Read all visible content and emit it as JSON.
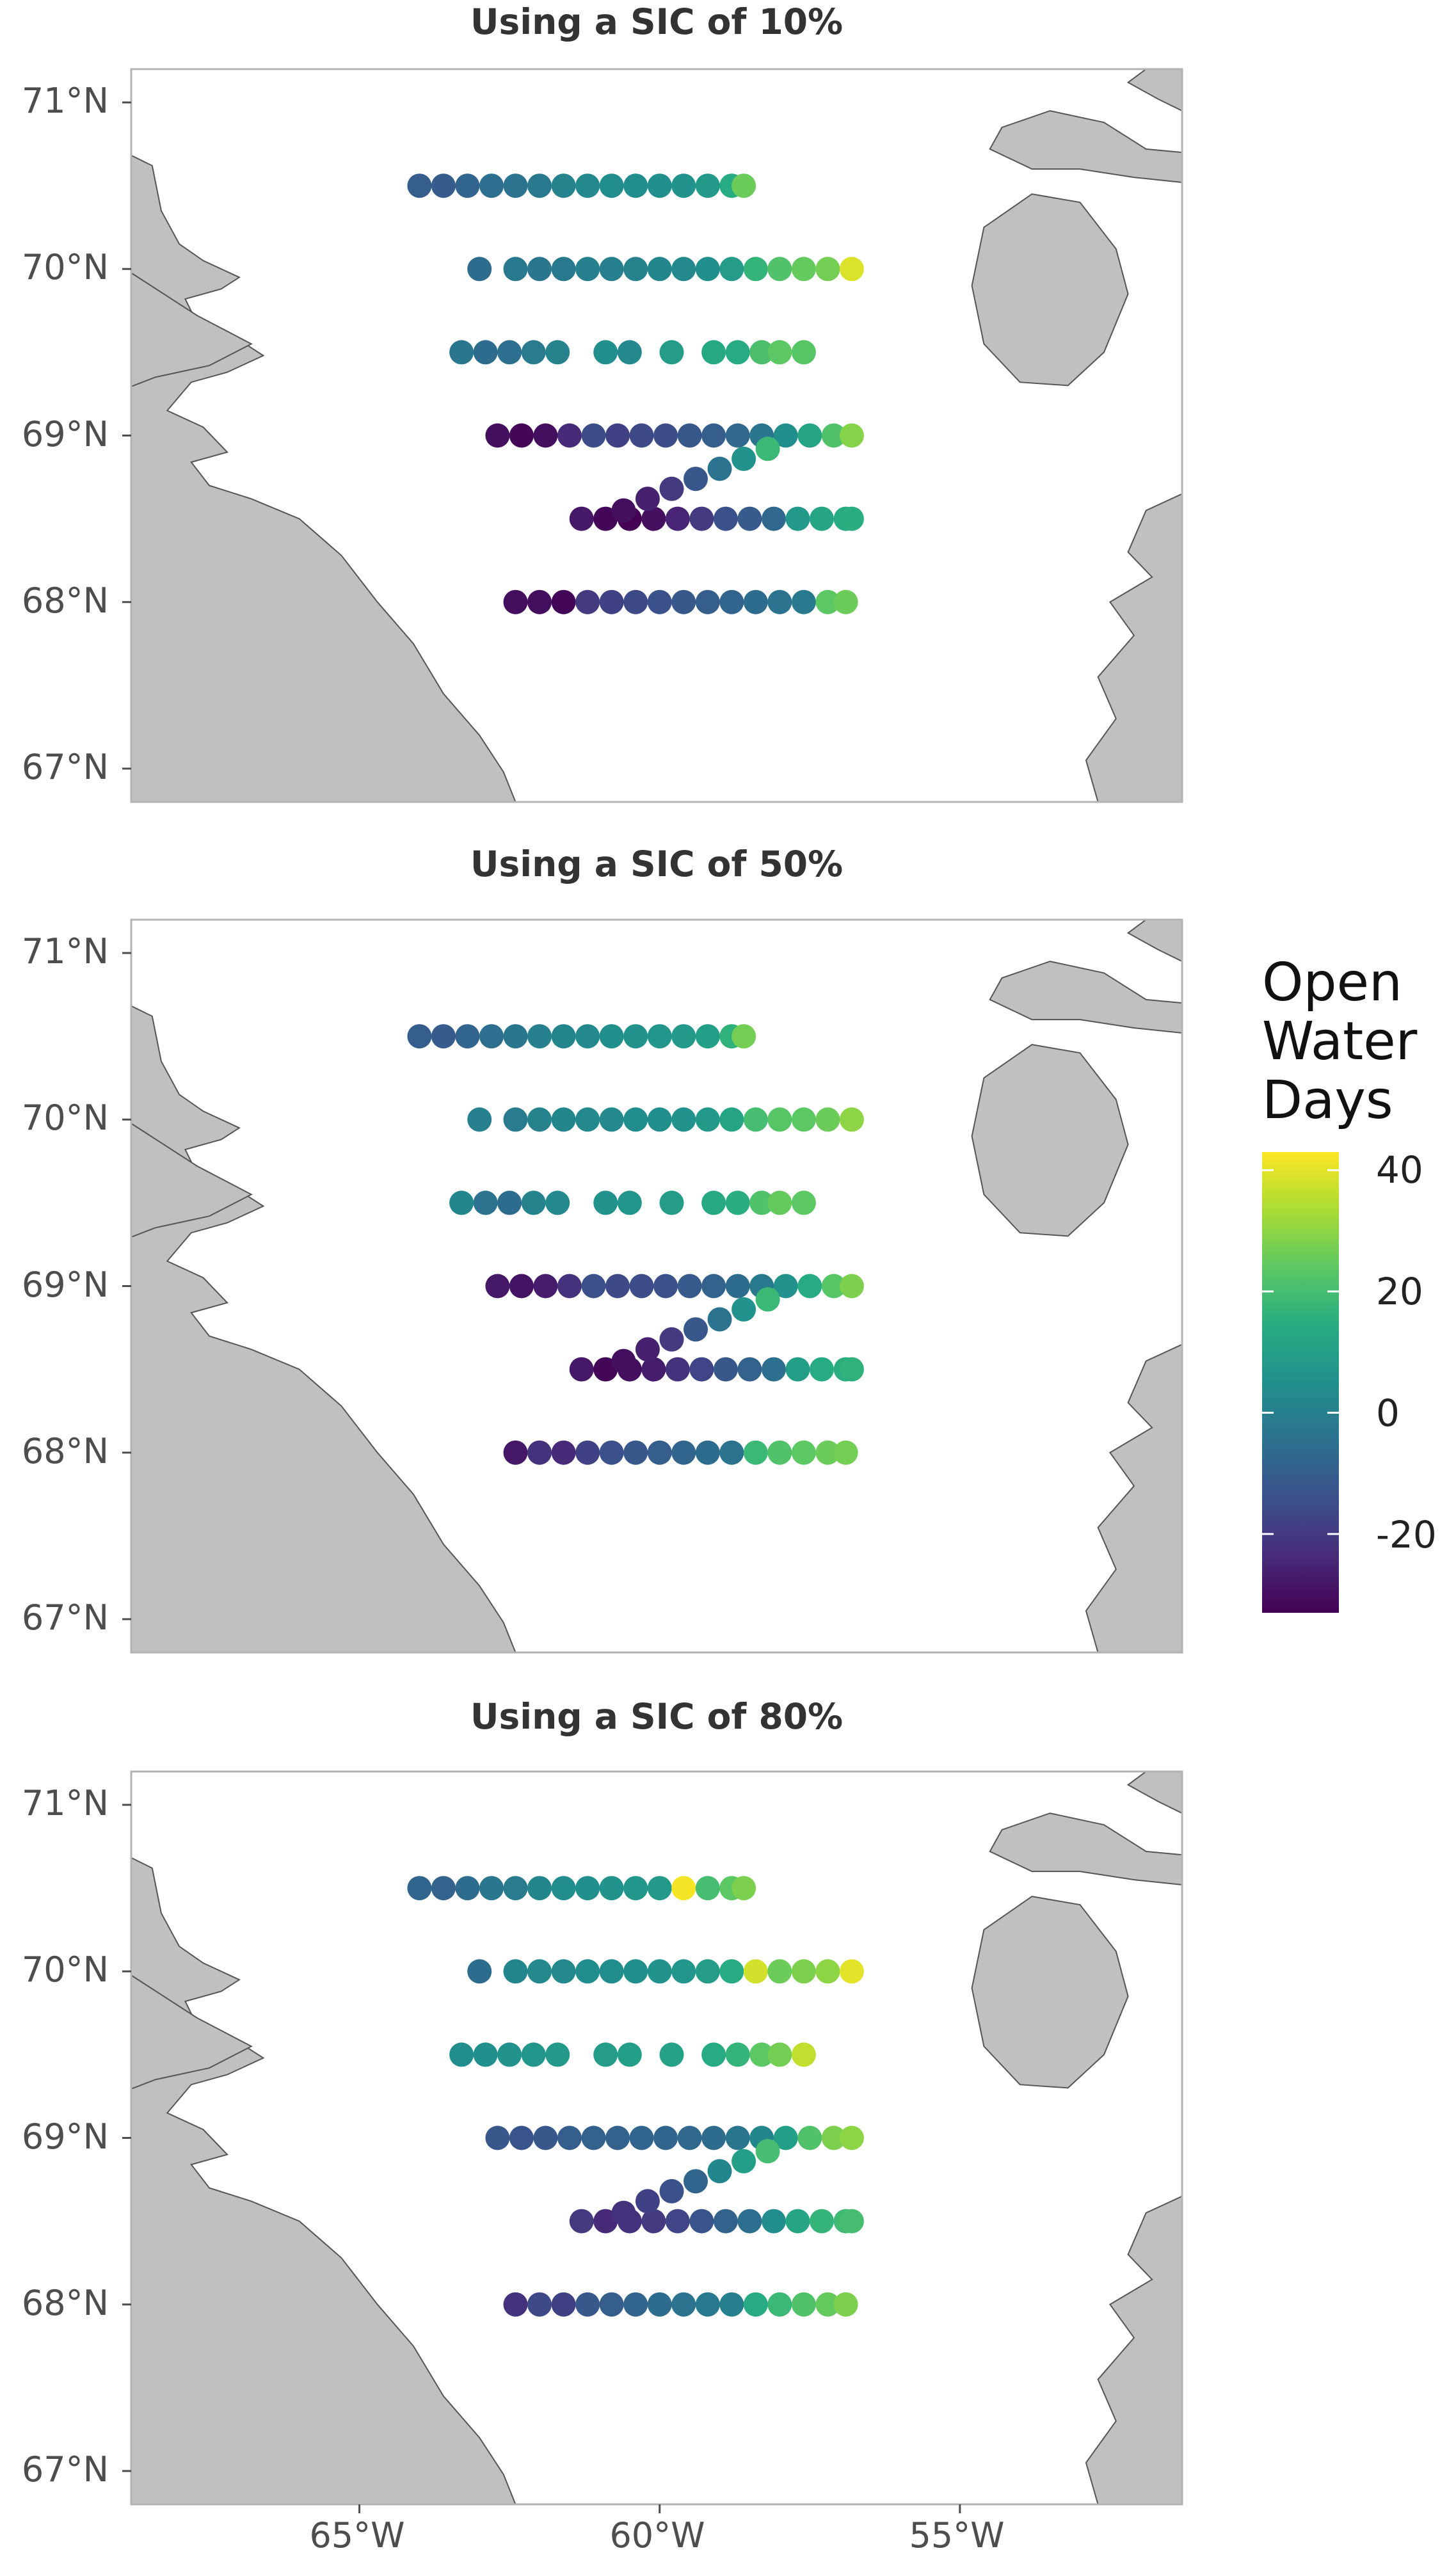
{
  "panels": [
    {
      "title": "Using a SIC of 10%"
    },
    {
      "title": "Using a SIC of 50%"
    },
    {
      "title": "Using a SIC of 80%"
    }
  ],
  "axes": {
    "lat_ticks": [
      "71°N",
      "70°N",
      "69°N",
      "68°N",
      "67°N"
    ],
    "lon_ticks": [
      "65°W",
      "60°W",
      "55°W"
    ]
  },
  "legend": {
    "title_lines": [
      "Open",
      "Water",
      "Days"
    ],
    "ticks": [
      "40",
      "20",
      "0",
      "-20"
    ],
    "range": [
      -33,
      43
    ],
    "palette": [
      "#440154",
      "#472c7a",
      "#3b518b",
      "#2c718e",
      "#21908d",
      "#27ad81",
      "#5cc863",
      "#aadc32",
      "#fde725"
    ]
  },
  "colors": {
    "land": "#c0c0c0",
    "land_stroke": "#555555",
    "frame": "#b3b3b3"
  },
  "chart_data": {
    "type": "scatter",
    "x_label": "",
    "y_label": "",
    "lon_range": [
      -68.8,
      -51.3
    ],
    "lat_range": [
      66.8,
      71.2
    ],
    "color_variable": "Open Water Days",
    "panels": [
      {
        "title": "Using a SIC of 10%",
        "lines": [
          {
            "lat": 70.5,
            "lon": [
              -64,
              -63.6,
              -63.2,
              -62.8,
              -62.4,
              -62.0,
              -61.6,
              -61.2,
              -60.8,
              -60.4,
              -60.0,
              -59.6,
              -59.2,
              -58.8,
              -58.6
            ],
            "owd": [
              -10,
              -11,
              -8,
              -5,
              -4,
              -2,
              1,
              3,
              4,
              4,
              5,
              6,
              8,
              14,
              26
            ]
          },
          {
            "lat": 70.0,
            "lon": [
              -63,
              -62.4,
              -62.0,
              -61.6,
              -61.2,
              -60.8,
              -60.4,
              -60.0,
              -59.6,
              -59.2,
              -58.8,
              -58.4,
              -58.0,
              -57.6,
              -57.2,
              -56.8
            ],
            "owd": [
              -6,
              -2,
              -3,
              -2,
              0,
              0,
              1,
              2,
              3,
              5,
              9,
              17,
              22,
              25,
              27,
              39
            ]
          },
          {
            "lat": 69.5,
            "lon": [
              -63.3,
              -62.9,
              -62.5,
              -62.1,
              -61.7,
              -60.9,
              -60.5,
              -59.8,
              -59.1,
              -58.7,
              -58.3,
              -58.0,
              -57.6
            ],
            "owd": [
              -3,
              -6,
              -5,
              -1,
              1,
              5,
              3,
              9,
              13,
              14,
              21,
              24,
              23
            ]
          },
          {
            "lat": 69.0,
            "lon": [
              -62.7,
              -62.3,
              -61.9,
              -61.5,
              -61.1,
              -60.7,
              -60.3,
              -59.9,
              -59.5,
              -59.1,
              -58.7,
              -58.3,
              -57.9,
              -57.5,
              -57.1,
              -56.8
            ],
            "owd": [
              -30,
              -32,
              -30,
              -24,
              -15,
              -18,
              -16,
              -15,
              -12,
              -10,
              -7,
              -3,
              5,
              12,
              22,
              29
            ]
          },
          {
            "lat": 68.5,
            "lon": [
              -61.3,
              -60.9,
              -60.5,
              -60.1,
              -59.7,
              -59.3,
              -58.9,
              -58.5,
              -58.1,
              -57.7,
              -57.3,
              -56.9,
              -56.8
            ],
            "owd": [
              -28,
              -32,
              -33,
              -30,
              -25,
              -20,
              -14,
              -11,
              -7,
              8,
              12,
              14,
              15
            ]
          },
          {
            "lat": 68.0,
            "lon": [
              -62.4,
              -62.0,
              -61.6,
              -61.2,
              -60.8,
              -60.4,
              -60.0,
              -59.6,
              -59.2,
              -58.8,
              -58.4,
              -58.0,
              -57.6,
              -57.2,
              -56.9
            ],
            "owd": [
              -30,
              -30,
              -32,
              -20,
              -18,
              -16,
              -14,
              -12,
              -10,
              -8,
              -6,
              -4,
              -2,
              24,
              26
            ]
          }
        ]
      },
      {
        "title": "Using a SIC of 50%",
        "lines": [
          {
            "lat": 70.5,
            "lon": [
              -64,
              -63.6,
              -63.2,
              -62.8,
              -62.4,
              -62.0,
              -61.6,
              -61.2,
              -60.8,
              -60.4,
              -60.0,
              -59.6,
              -59.2,
              -58.8,
              -58.6
            ],
            "owd": [
              -10,
              -11,
              -8,
              -5,
              -3,
              0,
              2,
              3,
              5,
              6,
              7,
              8,
              10,
              16,
              27
            ]
          },
          {
            "lat": 70.0,
            "lon": [
              -63,
              -62.4,
              -62.0,
              -61.6,
              -61.2,
              -60.8,
              -60.4,
              -60.0,
              -59.6,
              -59.2,
              -58.8,
              -58.4,
              -58.0,
              -57.6,
              -57.2,
              -56.8
            ],
            "owd": [
              0,
              -1,
              1,
              2,
              3,
              3,
              4,
              5,
              6,
              8,
              12,
              20,
              23,
              24,
              26,
              30
            ]
          },
          {
            "lat": 69.5,
            "lon": [
              -63.3,
              -62.9,
              -62.5,
              -62.1,
              -61.7,
              -60.9,
              -60.5,
              -59.8,
              -59.1,
              -58.7,
              -58.3,
              -58.0,
              -57.6
            ],
            "owd": [
              2,
              -4,
              -6,
              1,
              3,
              6,
              7,
              9,
              13,
              15,
              22,
              25,
              24
            ]
          },
          {
            "lat": 69.0,
            "lon": [
              -62.7,
              -62.3,
              -61.9,
              -61.5,
              -61.1,
              -60.7,
              -60.3,
              -59.9,
              -59.5,
              -59.1,
              -58.7,
              -58.3,
              -57.9,
              -57.5,
              -57.1,
              -56.8
            ],
            "owd": [
              -28,
              -29,
              -27,
              -22,
              -14,
              -16,
              -15,
              -14,
              -11,
              -9,
              -6,
              -2,
              6,
              14,
              23,
              28
            ]
          },
          {
            "lat": 68.5,
            "lon": [
              -61.3,
              -60.9,
              -60.5,
              -60.1,
              -59.7,
              -59.3,
              -58.9,
              -58.5,
              -58.1,
              -57.7,
              -57.3,
              -56.9,
              -56.8
            ],
            "owd": [
              -28,
              -32,
              -30,
              -27,
              -22,
              -17,
              -12,
              -9,
              -5,
              10,
              14,
              15,
              16
            ]
          },
          {
            "lat": 68.0,
            "lon": [
              -62.4,
              -62.0,
              -61.6,
              -61.2,
              -60.8,
              -60.4,
              -60.0,
              -59.6,
              -59.2,
              -58.8,
              -58.4,
              -58.0,
              -57.6,
              -57.2,
              -56.9
            ],
            "owd": [
              -28,
              -22,
              -24,
              -18,
              -14,
              -12,
              -10,
              -8,
              -6,
              -4,
              18,
              22,
              24,
              26,
              27
            ]
          }
        ]
      },
      {
        "title": "Using a SIC of 80%",
        "lines": [
          {
            "lat": 70.5,
            "lon": [
              -64,
              -63.6,
              -63.2,
              -62.8,
              -62.4,
              -62.0,
              -61.6,
              -61.2,
              -60.8,
              -60.4,
              -60.0,
              -59.6,
              -59.2,
              -58.8,
              -58.6
            ],
            "owd": [
              -8,
              -9,
              -6,
              -3,
              -1,
              2,
              4,
              5,
              6,
              7,
              8,
              42,
              20,
              24,
              28
            ]
          },
          {
            "lat": 70.0,
            "lon": [
              -63,
              -62.4,
              -62.0,
              -61.6,
              -61.2,
              -60.8,
              -60.4,
              -60.0,
              -59.6,
              -59.2,
              -58.8,
              -58.4,
              -58.0,
              -57.6,
              -57.2,
              -56.8
            ],
            "owd": [
              -6,
              2,
              3,
              3,
              4,
              4,
              5,
              6,
              7,
              9,
              14,
              38,
              26,
              28,
              30,
              40
            ]
          },
          {
            "lat": 69.5,
            "lon": [
              -63.3,
              -62.9,
              -62.5,
              -62.1,
              -61.7,
              -60.9,
              -60.5,
              -59.8,
              -59.1,
              -58.7,
              -58.3,
              -58.0,
              -57.6
            ],
            "owd": [
              4,
              5,
              6,
              7,
              8,
              9,
              10,
              11,
              14,
              17,
              24,
              27,
              36
            ]
          },
          {
            "lat": 69.0,
            "lon": [
              -62.7,
              -62.3,
              -61.9,
              -61.5,
              -61.1,
              -60.7,
              -60.3,
              -59.9,
              -59.5,
              -59.1,
              -58.7,
              -58.3,
              -57.9,
              -57.5,
              -57.1,
              -56.8
            ],
            "owd": [
              -12,
              -13,
              -12,
              -10,
              -9,
              -9,
              -8,
              -8,
              -7,
              -6,
              -3,
              2,
              10,
              22,
              28,
              30
            ]
          },
          {
            "lat": 68.5,
            "lon": [
              -61.3,
              -60.9,
              -60.5,
              -60.1,
              -59.7,
              -59.3,
              -58.9,
              -58.5,
              -58.1,
              -57.7,
              -57.3,
              -56.9,
              -56.8
            ],
            "owd": [
              -20,
              -24,
              -22,
              -20,
              -17,
              -13,
              -9,
              -5,
              4,
              12,
              17,
              19,
              20
            ]
          },
          {
            "lat": 68.0,
            "lon": [
              -62.4,
              -62.0,
              -61.6,
              -61.2,
              -60.8,
              -60.4,
              -60.0,
              -59.6,
              -59.2,
              -58.8,
              -58.4,
              -58.0,
              -57.6,
              -57.2,
              -56.9
            ],
            "owd": [
              -22,
              -16,
              -18,
              -12,
              -10,
              -8,
              -6,
              -4,
              -2,
              0,
              14,
              18,
              22,
              25,
              28
            ]
          }
        ]
      }
    ]
  }
}
